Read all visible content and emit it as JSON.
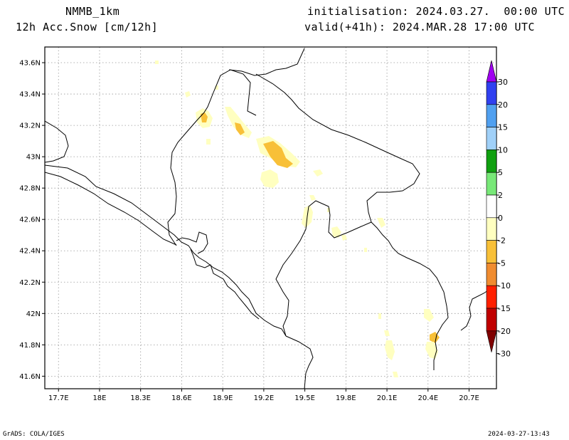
{
  "header": {
    "model": "NMMB_1km",
    "field": "12h Acc.Snow [cm/12h]",
    "init": "initialisation: 2024.03.27.  00:00 UTC",
    "valid": "valid(+41h): 2024.MAR.28 17:00 UTC"
  },
  "map": {
    "lon_range": [
      17.6,
      20.9
    ],
    "lat_range": [
      41.52,
      43.7
    ],
    "lon_ticks": [
      "17.7E",
      "18E",
      "18.3E",
      "18.6E",
      "18.9E",
      "19.2E",
      "19.5E",
      "19.8E",
      "20.1E",
      "20.4E",
      "20.7E"
    ],
    "lat_ticks": [
      "41.6N",
      "41.8N",
      "42N",
      "42.2N",
      "42.4N",
      "42.6N",
      "42.8N",
      "43N",
      "43.2N",
      "43.4N",
      "43.6N"
    ],
    "grid": "dotted"
  },
  "colorbar": {
    "labels": [
      "30",
      "20",
      "15",
      "10",
      "5",
      "2",
      "0",
      "-2",
      "-5",
      "-10",
      "-15",
      "-20",
      "-30"
    ],
    "colors": [
      "#a000f0",
      "#3040f0",
      "#50a0f0",
      "#a0d0f8",
      "#10a010",
      "#78e878",
      "#ffffff",
      "#ffffc0",
      "#f8c038",
      "#f08c30",
      "#ff2000",
      "#c00000",
      "#800000"
    ]
  },
  "footer": {
    "left": "GrADS: COLA/IGES",
    "right": "2024-03-27-13:43"
  }
}
